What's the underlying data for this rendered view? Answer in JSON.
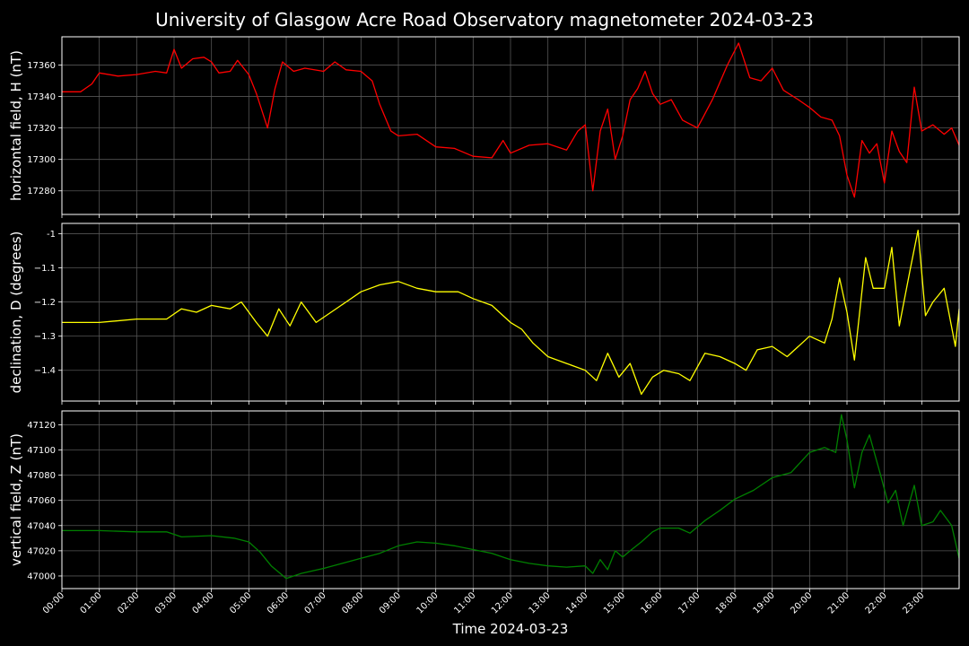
{
  "chart_data": {
    "type": "line",
    "title": "University of Glasgow Acre Road Observatory magnetometer 2024-03-23",
    "xlabel": "Time 2024-03-23",
    "x_ticks": [
      "00:00",
      "01:00",
      "02:00",
      "03:00",
      "04:00",
      "05:00",
      "06:00",
      "07:00",
      "08:00",
      "09:00",
      "10:00",
      "11:00",
      "12:00",
      "13:00",
      "14:00",
      "15:00",
      "16:00",
      "17:00",
      "18:00",
      "19:00",
      "20:00",
      "21:00",
      "22:00",
      "23:00"
    ],
    "xlim_hours": [
      0,
      24
    ],
    "grid": true,
    "legend": "none",
    "panels": [
      {
        "ylabel": "horizontal field, H (nT)",
        "color": "#ff0000",
        "ylim": [
          17265,
          17378
        ],
        "yticks": [
          17280,
          17300,
          17320,
          17340,
          17360
        ],
        "points": [
          [
            0,
            17343
          ],
          [
            0.5,
            17343
          ],
          [
            0.8,
            17348
          ],
          [
            1,
            17355
          ],
          [
            1.5,
            17353
          ],
          [
            2,
            17354
          ],
          [
            2.5,
            17356
          ],
          [
            2.8,
            17355
          ],
          [
            3,
            17370
          ],
          [
            3.2,
            17358
          ],
          [
            3.5,
            17364
          ],
          [
            3.8,
            17365
          ],
          [
            4,
            17362
          ],
          [
            4.2,
            17355
          ],
          [
            4.5,
            17356
          ],
          [
            4.7,
            17363
          ],
          [
            5,
            17354
          ],
          [
            5.2,
            17342
          ],
          [
            5.5,
            17320
          ],
          [
            5.7,
            17345
          ],
          [
            5.9,
            17362
          ],
          [
            6.2,
            17356
          ],
          [
            6.5,
            17358
          ],
          [
            7,
            17356
          ],
          [
            7.3,
            17362
          ],
          [
            7.6,
            17357
          ],
          [
            8,
            17356
          ],
          [
            8.3,
            17350
          ],
          [
            8.5,
            17335
          ],
          [
            8.8,
            17318
          ],
          [
            9,
            17315
          ],
          [
            9.5,
            17316
          ],
          [
            10,
            17308
          ],
          [
            10.5,
            17307
          ],
          [
            11,
            17302
          ],
          [
            11.5,
            17301
          ],
          [
            11.8,
            17312
          ],
          [
            12,
            17304
          ],
          [
            12.5,
            17309
          ],
          [
            13,
            17310
          ],
          [
            13.5,
            17306
          ],
          [
            13.8,
            17318
          ],
          [
            14,
            17322
          ],
          [
            14.2,
            17280
          ],
          [
            14.4,
            17318
          ],
          [
            14.6,
            17332
          ],
          [
            14.8,
            17300
          ],
          [
            15,
            17315
          ],
          [
            15.2,
            17338
          ],
          [
            15.4,
            17345
          ],
          [
            15.6,
            17356
          ],
          [
            15.8,
            17342
          ],
          [
            16,
            17335
          ],
          [
            16.3,
            17338
          ],
          [
            16.6,
            17325
          ],
          [
            17,
            17320
          ],
          [
            17.4,
            17338
          ],
          [
            17.8,
            17360
          ],
          [
            18.1,
            17374
          ],
          [
            18.4,
            17352
          ],
          [
            18.7,
            17350
          ],
          [
            19,
            17358
          ],
          [
            19.3,
            17344
          ],
          [
            19.7,
            17338
          ],
          [
            20,
            17333
          ],
          [
            20.3,
            17327
          ],
          [
            20.6,
            17325
          ],
          [
            20.8,
            17315
          ],
          [
            21,
            17290
          ],
          [
            21.2,
            17276
          ],
          [
            21.4,
            17312
          ],
          [
            21.6,
            17304
          ],
          [
            21.8,
            17310
          ],
          [
            22,
            17285
          ],
          [
            22.2,
            17318
          ],
          [
            22.4,
            17305
          ],
          [
            22.6,
            17298
          ],
          [
            22.8,
            17346
          ],
          [
            23.0,
            17318
          ],
          [
            23.3,
            17322
          ],
          [
            23.6,
            17316
          ],
          [
            23.8,
            17320
          ],
          [
            24,
            17309
          ]
        ]
      },
      {
        "ylabel": "declination, D (degrees)",
        "color": "#ffff00",
        "ylim": [
          -1.49,
          -0.97
        ],
        "yticks": [
          -1.4,
          -1.3,
          -1.2,
          -1.1,
          -1.0
        ],
        "points": [
          [
            0,
            -1.26
          ],
          [
            1,
            -1.26
          ],
          [
            2,
            -1.25
          ],
          [
            2.8,
            -1.25
          ],
          [
            3.2,
            -1.22
          ],
          [
            3.6,
            -1.23
          ],
          [
            4,
            -1.21
          ],
          [
            4.5,
            -1.22
          ],
          [
            4.8,
            -1.2
          ],
          [
            5.2,
            -1.26
          ],
          [
            5.5,
            -1.3
          ],
          [
            5.8,
            -1.22
          ],
          [
            6.1,
            -1.27
          ],
          [
            6.4,
            -1.2
          ],
          [
            6.8,
            -1.26
          ],
          [
            7.2,
            -1.23
          ],
          [
            7.6,
            -1.2
          ],
          [
            8,
            -1.17
          ],
          [
            8.5,
            -1.15
          ],
          [
            9,
            -1.14
          ],
          [
            9.5,
            -1.16
          ],
          [
            10,
            -1.17
          ],
          [
            10.6,
            -1.17
          ],
          [
            11,
            -1.19
          ],
          [
            11.5,
            -1.21
          ],
          [
            12,
            -1.26
          ],
          [
            12.3,
            -1.28
          ],
          [
            12.6,
            -1.32
          ],
          [
            13,
            -1.36
          ],
          [
            13.5,
            -1.38
          ],
          [
            14,
            -1.4
          ],
          [
            14.3,
            -1.43
          ],
          [
            14.6,
            -1.35
          ],
          [
            14.9,
            -1.42
          ],
          [
            15.2,
            -1.38
          ],
          [
            15.5,
            -1.47
          ],
          [
            15.8,
            -1.42
          ],
          [
            16.1,
            -1.4
          ],
          [
            16.5,
            -1.41
          ],
          [
            16.8,
            -1.43
          ],
          [
            17.2,
            -1.35
          ],
          [
            17.6,
            -1.36
          ],
          [
            18,
            -1.38
          ],
          [
            18.3,
            -1.4
          ],
          [
            18.6,
            -1.34
          ],
          [
            19,
            -1.33
          ],
          [
            19.4,
            -1.36
          ],
          [
            19.8,
            -1.32
          ],
          [
            20,
            -1.3
          ],
          [
            20.4,
            -1.32
          ],
          [
            20.6,
            -1.25
          ],
          [
            20.8,
            -1.13
          ],
          [
            21,
            -1.23
          ],
          [
            21.2,
            -1.37
          ],
          [
            21.5,
            -1.07
          ],
          [
            21.7,
            -1.16
          ],
          [
            22,
            -1.16
          ],
          [
            22.2,
            -1.04
          ],
          [
            22.4,
            -1.27
          ],
          [
            22.7,
            -1.1
          ],
          [
            22.9,
            -0.99
          ],
          [
            23.1,
            -1.24
          ],
          [
            23.3,
            -1.2
          ],
          [
            23.6,
            -1.16
          ],
          [
            23.9,
            -1.33
          ],
          [
            24,
            -1.22
          ]
        ]
      },
      {
        "ylabel": "vertical field, Z (nT)",
        "color": "#008000",
        "ylim": [
          46990,
          47131
        ],
        "yticks": [
          47000,
          47020,
          47040,
          47060,
          47080,
          47100,
          47120
        ],
        "points": [
          [
            0,
            47036
          ],
          [
            1,
            47036
          ],
          [
            2,
            47035
          ],
          [
            2.8,
            47035
          ],
          [
            3.2,
            47031
          ],
          [
            4,
            47032
          ],
          [
            4.6,
            47030
          ],
          [
            5,
            47027
          ],
          [
            5.3,
            47019
          ],
          [
            5.6,
            47008
          ],
          [
            6,
            46998
          ],
          [
            6.4,
            47002
          ],
          [
            7,
            47006
          ],
          [
            7.5,
            47010
          ],
          [
            8,
            47014
          ],
          [
            8.5,
            47018
          ],
          [
            9,
            47024
          ],
          [
            9.5,
            47027
          ],
          [
            10,
            47026
          ],
          [
            10.5,
            47024
          ],
          [
            11,
            47021
          ],
          [
            11.5,
            47018
          ],
          [
            12,
            47013
          ],
          [
            12.5,
            47010
          ],
          [
            13,
            47008
          ],
          [
            13.5,
            47007
          ],
          [
            14,
            47008
          ],
          [
            14.2,
            47002
          ],
          [
            14.4,
            47013
          ],
          [
            14.6,
            47005
          ],
          [
            14.8,
            47020
          ],
          [
            15,
            47015
          ],
          [
            15.2,
            47020
          ],
          [
            15.5,
            47027
          ],
          [
            15.8,
            47035
          ],
          [
            16,
            47038
          ],
          [
            16.5,
            47038
          ],
          [
            16.8,
            47034
          ],
          [
            17.2,
            47044
          ],
          [
            17.6,
            47052
          ],
          [
            18,
            47061
          ],
          [
            18.5,
            47068
          ],
          [
            19,
            47078
          ],
          [
            19.5,
            47082
          ],
          [
            20,
            47098
          ],
          [
            20.4,
            47102
          ],
          [
            20.7,
            47098
          ],
          [
            20.85,
            47128
          ],
          [
            21,
            47108
          ],
          [
            21.2,
            47070
          ],
          [
            21.4,
            47098
          ],
          [
            21.6,
            47112
          ],
          [
            21.9,
            47080
          ],
          [
            22.1,
            47058
          ],
          [
            22.3,
            47068
          ],
          [
            22.5,
            47040
          ],
          [
            22.8,
            47072
          ],
          [
            23,
            47040
          ],
          [
            23.3,
            47043
          ],
          [
            23.5,
            47052
          ],
          [
            23.8,
            47040
          ],
          [
            24,
            47014
          ]
        ]
      }
    ]
  }
}
